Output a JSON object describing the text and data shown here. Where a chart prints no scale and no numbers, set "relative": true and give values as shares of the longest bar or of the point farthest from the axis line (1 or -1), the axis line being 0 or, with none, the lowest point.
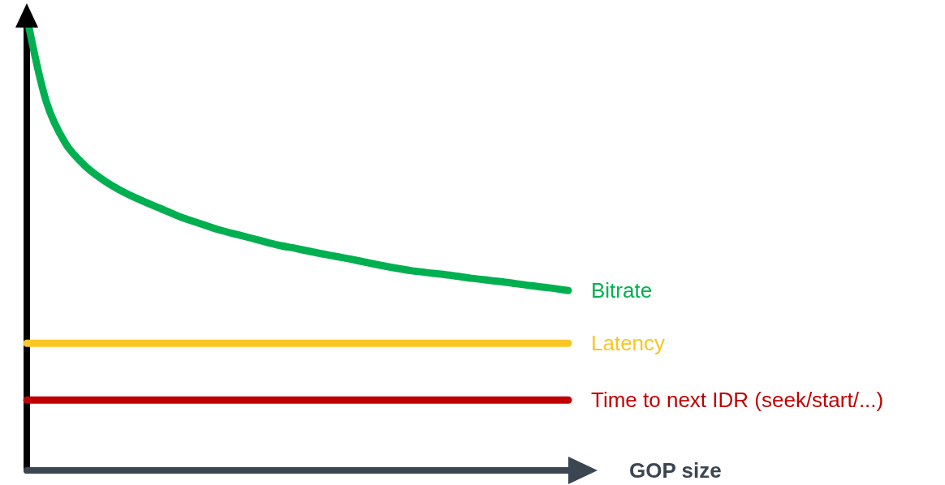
{
  "chart_data": {
    "type": "line",
    "relative": true,
    "xlabel": "GOP size",
    "legend": false,
    "marker": "none",
    "line_style": "solid",
    "grid": false,
    "categories": [
      null,
      null,
      null,
      null,
      null,
      null,
      null,
      null,
      null,
      null,
      null,
      null,
      null,
      null,
      null,
      null,
      null,
      null,
      null,
      null,
      null,
      null,
      null,
      null,
      null,
      null,
      null,
      null,
      null
    ],
    "series": [
      {
        "name": "Bitrate",
        "color": "#00b050",
        "values": [
          1.0,
          0.813,
          0.72,
          0.671,
          0.638,
          0.613,
          0.593,
          0.575,
          0.557,
          0.543,
          0.529,
          0.518,
          0.507,
          0.496,
          0.488,
          0.479,
          0.471,
          0.463,
          0.454,
          0.446,
          0.439,
          0.434,
          0.429,
          0.423,
          0.418,
          0.413,
          0.407,
          0.402,
          0.396
        ]
      },
      {
        "name": "Latency",
        "color": "#f9c623",
        "values": [
          0.28,
          0.28,
          0.28,
          0.28,
          0.28,
          0.28,
          0.28,
          0.28,
          0.28,
          0.28,
          0.28,
          0.28,
          0.28,
          0.28,
          0.28,
          0.28,
          0.28,
          0.28,
          0.28,
          0.28,
          0.28,
          0.28,
          0.28,
          0.28,
          0.28,
          0.28,
          0.28,
          0.28,
          0.28
        ]
      },
      {
        "name": "Time to next IDR (seek/start/...)",
        "color": "#c00000",
        "values": [
          0.155,
          0.155,
          0.155,
          0.155,
          0.155,
          0.155,
          0.155,
          0.155,
          0.155,
          0.155,
          0.155,
          0.155,
          0.155,
          0.155,
          0.155,
          0.155,
          0.155,
          0.155,
          0.155,
          0.155,
          0.155,
          0.155,
          0.155,
          0.155,
          0.155,
          0.155,
          0.155,
          0.155,
          0.155
        ]
      }
    ]
  }
}
